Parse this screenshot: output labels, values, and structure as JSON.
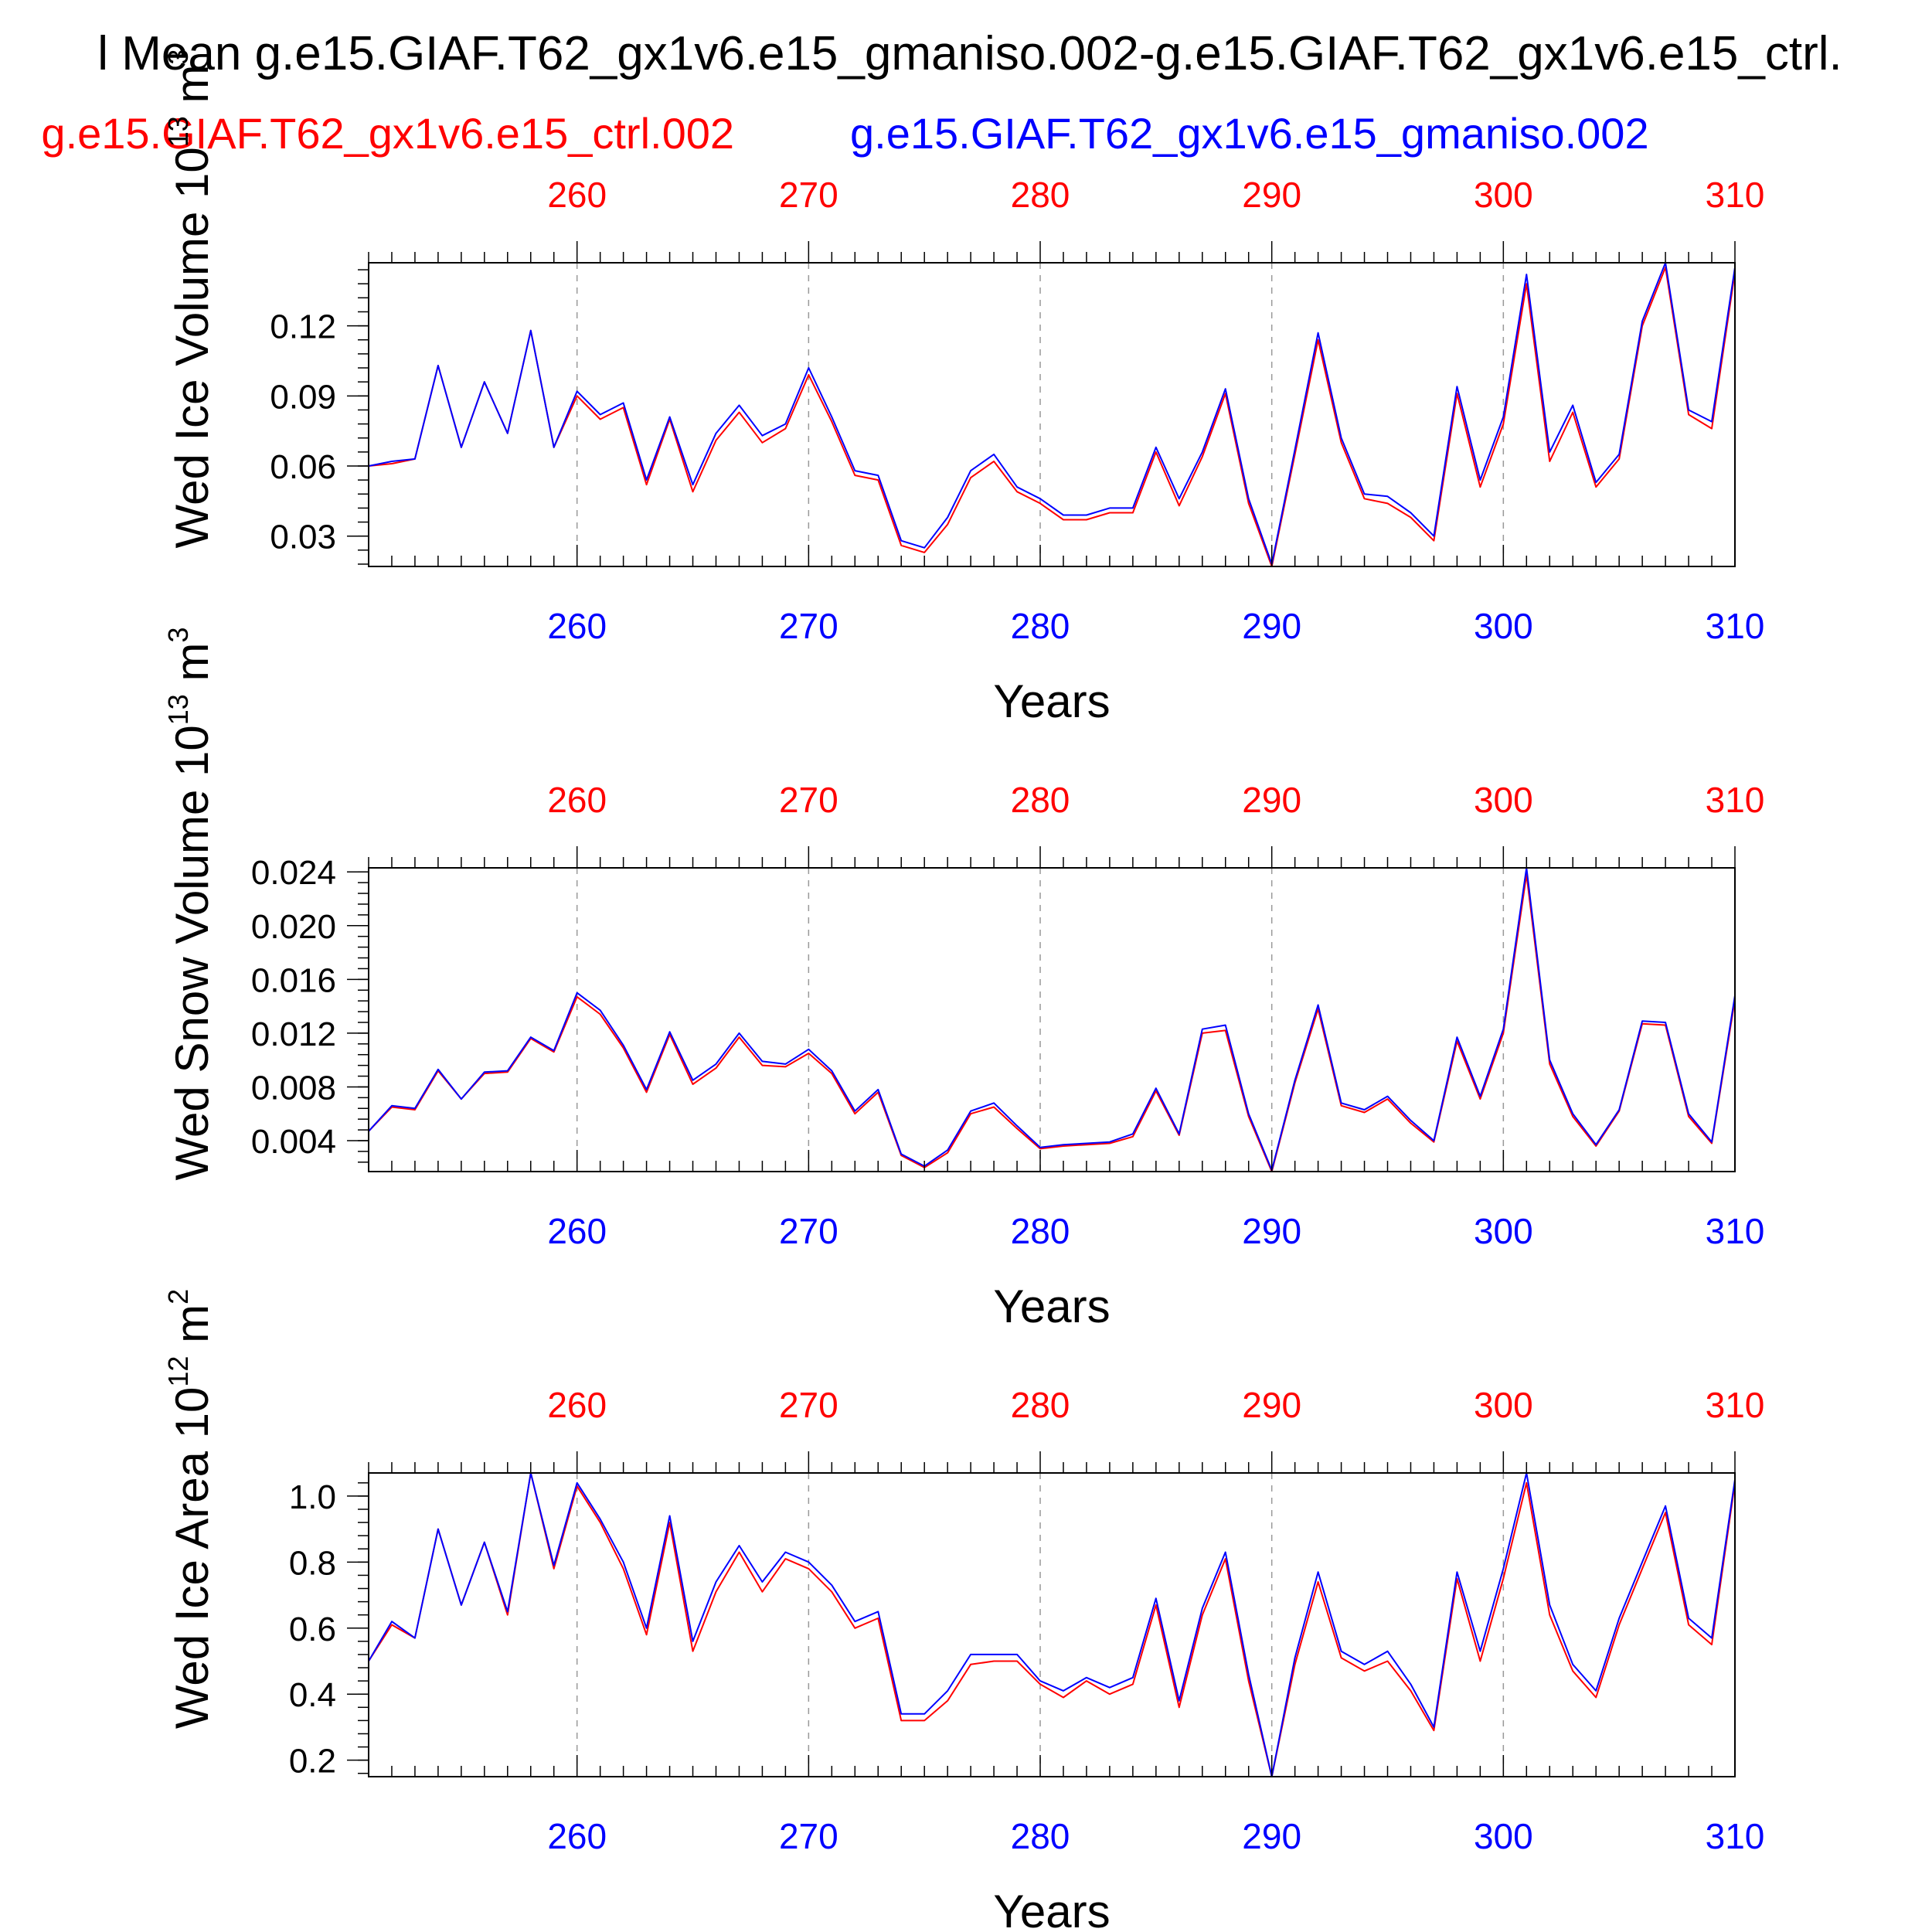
{
  "header": {
    "title": "l Mean g.e15.GIAF.T62_gx1v6.e15_gmaniso.002-g.e15.GIAF.T62_gx1v6.e15_ctrl.",
    "legend_red": "g.e15.GIAF.T62_gx1v6.e15_ctrl.002",
    "legend_blue": "g.e15.GIAF.T62_gx1v6.e15_gmaniso.002"
  },
  "colors": {
    "red": "#ff0000",
    "blue": "#0000ff",
    "axis": "#000000",
    "grid": "#999999"
  },
  "chart_data": [
    {
      "type": "line",
      "ylabel": "Wed Ice Volume 10^13 m^3",
      "ylabel_base": "Wed Ice Volume 10",
      "ylabel_exp": "13",
      "ylabel_unit": "m",
      "ylabel_unit_exp": "3",
      "xlabel": "Years",
      "xlim": [
        251,
        310
      ],
      "ylim": [
        0.017,
        0.147
      ],
      "yticks": [
        0.03,
        0.06,
        0.09,
        0.12
      ],
      "ytick_labels": [
        "0.03",
        "0.06",
        "0.09",
        "0.12"
      ],
      "yminor": 0.006,
      "xticks": [
        260,
        270,
        280,
        290,
        300,
        310
      ],
      "xtick_labels": [
        "260",
        "270",
        "280",
        "290",
        "300",
        "310"
      ],
      "grid": "vertical dashed at major x ticks",
      "x": [
        251,
        252,
        253,
        254,
        255,
        256,
        257,
        258,
        259,
        260,
        261,
        262,
        263,
        264,
        265,
        266,
        267,
        268,
        269,
        270,
        271,
        272,
        273,
        274,
        275,
        276,
        277,
        278,
        279,
        280,
        281,
        282,
        283,
        284,
        285,
        286,
        287,
        288,
        289,
        290,
        291,
        292,
        293,
        294,
        295,
        296,
        297,
        298,
        299,
        300,
        301,
        302,
        303,
        304,
        305,
        306,
        307,
        308,
        309,
        310
      ],
      "series": [
        {
          "name": "g.e15.GIAF.T62_gx1v6.e15_ctrl.002",
          "color": "#ff0000",
          "values": [
            0.06,
            0.061,
            0.063,
            0.103,
            0.068,
            0.096,
            0.074,
            0.118,
            0.068,
            0.09,
            0.08,
            0.085,
            0.052,
            0.08,
            0.049,
            0.071,
            0.083,
            0.07,
            0.076,
            0.099,
            0.079,
            0.056,
            0.054,
            0.026,
            0.023,
            0.035,
            0.055,
            0.062,
            0.049,
            0.044,
            0.037,
            0.037,
            0.04,
            0.04,
            0.066,
            0.043,
            0.064,
            0.091,
            0.044,
            0.017,
            0.065,
            0.114,
            0.07,
            0.046,
            0.044,
            0.038,
            0.028,
            0.091,
            0.051,
            0.078,
            0.138,
            0.062,
            0.083,
            0.051,
            0.063,
            0.12,
            0.145,
            0.082,
            0.076,
            0.143
          ]
        },
        {
          "name": "g.e15.GIAF.T62_gx1v6.e15_gmaniso.002",
          "color": "#0000ff",
          "values": [
            0.06,
            0.062,
            0.063,
            0.103,
            0.068,
            0.096,
            0.074,
            0.118,
            0.068,
            0.092,
            0.082,
            0.087,
            0.054,
            0.081,
            0.052,
            0.074,
            0.086,
            0.073,
            0.078,
            0.102,
            0.081,
            0.058,
            0.056,
            0.028,
            0.025,
            0.038,
            0.058,
            0.065,
            0.051,
            0.046,
            0.039,
            0.039,
            0.042,
            0.042,
            0.068,
            0.046,
            0.066,
            0.093,
            0.046,
            0.018,
            0.067,
            0.117,
            0.072,
            0.048,
            0.047,
            0.04,
            0.03,
            0.094,
            0.054,
            0.081,
            0.142,
            0.066,
            0.086,
            0.053,
            0.065,
            0.122,
            0.147,
            0.084,
            0.079,
            0.145
          ]
        }
      ]
    },
    {
      "type": "line",
      "ylabel": "Wed Snow Volume 10^13 m^3",
      "ylabel_base": "Wed Snow Volume 10",
      "ylabel_exp": "13",
      "ylabel_unit": "m",
      "ylabel_unit_exp": "3",
      "xlabel": "Years",
      "xlim": [
        251,
        310
      ],
      "ylim": [
        0.0017,
        0.0243
      ],
      "yticks": [
        0.004,
        0.008,
        0.012,
        0.016,
        0.02,
        0.024
      ],
      "ytick_labels": [
        "0.004",
        "0.008",
        "0.012",
        "0.016",
        "0.020",
        "0.024"
      ],
      "yminor": 0.0008,
      "xticks": [
        260,
        270,
        280,
        290,
        300,
        310
      ],
      "xtick_labels": [
        "260",
        "270",
        "280",
        "290",
        "300",
        "310"
      ],
      "grid": "vertical dashed at major x ticks",
      "x": [
        251,
        252,
        253,
        254,
        255,
        256,
        257,
        258,
        259,
        260,
        261,
        262,
        263,
        264,
        265,
        266,
        267,
        268,
        269,
        270,
        271,
        272,
        273,
        274,
        275,
        276,
        277,
        278,
        279,
        280,
        281,
        282,
        283,
        284,
        285,
        286,
        287,
        288,
        289,
        290,
        291,
        292,
        293,
        294,
        295,
        296,
        297,
        298,
        299,
        300,
        301,
        302,
        303,
        304,
        305,
        306,
        307,
        308,
        309,
        310
      ],
      "series": [
        {
          "name": "g.e15.GIAF.T62_gx1v6.e15_ctrl.002",
          "color": "#ff0000",
          "values": [
            0.0047,
            0.0065,
            0.0063,
            0.0092,
            0.0071,
            0.009,
            0.0091,
            0.0116,
            0.0106,
            0.0147,
            0.0134,
            0.0109,
            0.0076,
            0.0119,
            0.0082,
            0.0094,
            0.0117,
            0.0096,
            0.0095,
            0.0105,
            0.009,
            0.006,
            0.0076,
            0.0029,
            0.002,
            0.0031,
            0.006,
            0.0065,
            0.0049,
            0.0034,
            0.0036,
            0.0037,
            0.0038,
            0.0043,
            0.0077,
            0.0044,
            0.012,
            0.0122,
            0.0058,
            0.0017,
            0.0083,
            0.0138,
            0.0066,
            0.0061,
            0.0071,
            0.0053,
            0.0039,
            0.0114,
            0.0071,
            0.012,
            0.0238,
            0.0097,
            0.0058,
            0.0036,
            0.0062,
            0.0127,
            0.0126,
            0.0058,
            0.0038,
            0.0145
          ]
        },
        {
          "name": "g.e15.GIAF.T62_gx1v6.e15_gmaniso.002",
          "color": "#0000ff",
          "values": [
            0.0047,
            0.0066,
            0.0064,
            0.0093,
            0.0071,
            0.0091,
            0.0092,
            0.0117,
            0.0107,
            0.015,
            0.0137,
            0.0111,
            0.0078,
            0.0121,
            0.0085,
            0.0097,
            0.012,
            0.0099,
            0.0097,
            0.0108,
            0.0092,
            0.0062,
            0.0078,
            0.003,
            0.0021,
            0.0033,
            0.0062,
            0.0068,
            0.0051,
            0.0035,
            0.0037,
            0.0038,
            0.0039,
            0.0045,
            0.0079,
            0.0045,
            0.0123,
            0.0126,
            0.006,
            0.0018,
            0.0085,
            0.0141,
            0.0068,
            0.0063,
            0.0073,
            0.0055,
            0.004,
            0.0117,
            0.0073,
            0.0123,
            0.0243,
            0.01,
            0.006,
            0.0037,
            0.0063,
            0.0129,
            0.0128,
            0.006,
            0.0039,
            0.0148
          ]
        }
      ]
    },
    {
      "type": "line",
      "ylabel": "Wed Ice Area 10^12 m^2",
      "ylabel_base": "Wed Ice Area 10",
      "ylabel_exp": "12",
      "ylabel_unit": "m",
      "ylabel_unit_exp": "2",
      "xlabel": "Years",
      "xlim": [
        251,
        310
      ],
      "ylim": [
        0.15,
        1.07
      ],
      "yticks": [
        0.2,
        0.4,
        0.6,
        0.8,
        1.0
      ],
      "ytick_labels": [
        "0.2",
        "0.4",
        "0.6",
        "0.8",
        "1.0"
      ],
      "yminor": 0.04,
      "xticks": [
        260,
        270,
        280,
        290,
        300,
        310
      ],
      "xtick_labels": [
        "260",
        "270",
        "280",
        "290",
        "300",
        "310"
      ],
      "grid": "vertical dashed at major x ticks",
      "x": [
        251,
        252,
        253,
        254,
        255,
        256,
        257,
        258,
        259,
        260,
        261,
        262,
        263,
        264,
        265,
        266,
        267,
        268,
        269,
        270,
        271,
        272,
        273,
        274,
        275,
        276,
        277,
        278,
        279,
        280,
        281,
        282,
        283,
        284,
        285,
        286,
        287,
        288,
        289,
        290,
        291,
        292,
        293,
        294,
        295,
        296,
        297,
        298,
        299,
        300,
        301,
        302,
        303,
        304,
        305,
        306,
        307,
        308,
        309,
        310
      ],
      "series": [
        {
          "name": "g.e15.GIAF.T62_gx1v6.e15_ctrl.002",
          "color": "#ff0000",
          "values": [
            0.5,
            0.61,
            0.57,
            0.9,
            0.67,
            0.86,
            0.64,
            1.07,
            0.78,
            1.03,
            0.92,
            0.78,
            0.58,
            0.92,
            0.53,
            0.71,
            0.83,
            0.71,
            0.81,
            0.78,
            0.71,
            0.6,
            0.63,
            0.32,
            0.32,
            0.38,
            0.49,
            0.5,
            0.5,
            0.43,
            0.39,
            0.44,
            0.4,
            0.43,
            0.67,
            0.36,
            0.64,
            0.81,
            0.44,
            0.15,
            0.49,
            0.74,
            0.51,
            0.47,
            0.5,
            0.41,
            0.29,
            0.75,
            0.5,
            0.75,
            1.04,
            0.64,
            0.47,
            0.39,
            0.61,
            0.78,
            0.95,
            0.61,
            0.55,
            1.04
          ]
        },
        {
          "name": "g.e15.GIAF.T62_gx1v6.e15_gmaniso.002",
          "color": "#0000ff",
          "values": [
            0.5,
            0.62,
            0.57,
            0.9,
            0.67,
            0.86,
            0.65,
            1.07,
            0.79,
            1.04,
            0.93,
            0.8,
            0.6,
            0.94,
            0.56,
            0.74,
            0.85,
            0.74,
            0.83,
            0.8,
            0.73,
            0.62,
            0.65,
            0.34,
            0.34,
            0.41,
            0.52,
            0.52,
            0.52,
            0.44,
            0.41,
            0.45,
            0.42,
            0.45,
            0.69,
            0.38,
            0.66,
            0.83,
            0.46,
            0.15,
            0.51,
            0.77,
            0.53,
            0.49,
            0.53,
            0.43,
            0.3,
            0.77,
            0.53,
            0.78,
            1.07,
            0.67,
            0.49,
            0.41,
            0.63,
            0.8,
            0.97,
            0.63,
            0.57,
            1.05
          ]
        }
      ]
    }
  ]
}
